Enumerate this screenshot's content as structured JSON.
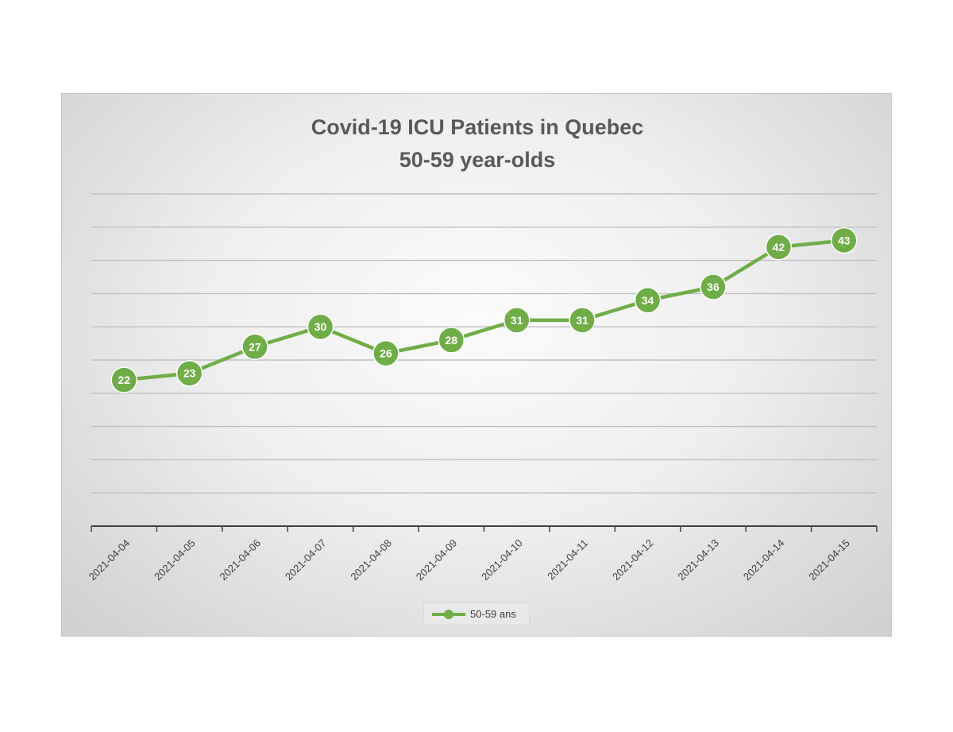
{
  "chart_data": {
    "type": "line",
    "title": [
      "Covid-19 ICU Patients in Quebec",
      "50-59 year-olds"
    ],
    "xlabel": "",
    "ylabel": "",
    "categories": [
      "2021-04-04",
      "2021-04-05",
      "2021-04-06",
      "2021-04-07",
      "2021-04-08",
      "2021-04-09",
      "2021-04-10",
      "2021-04-11",
      "2021-04-12",
      "2021-04-13",
      "2021-04-14",
      "2021-04-15"
    ],
    "series": [
      {
        "name": "50-59 ans",
        "values": [
          22,
          23,
          27,
          30,
          26,
          28,
          31,
          31,
          34,
          36,
          42,
          43
        ]
      }
    ],
    "ylim": [
      0,
      50
    ],
    "y_gridline_step": 5,
    "data_labels": true,
    "grid": true,
    "legend": "bottom",
    "colors": {
      "series": "#70ad47",
      "title": "#595959",
      "grid": "#bfbfbf",
      "axis": "#404040"
    }
  }
}
